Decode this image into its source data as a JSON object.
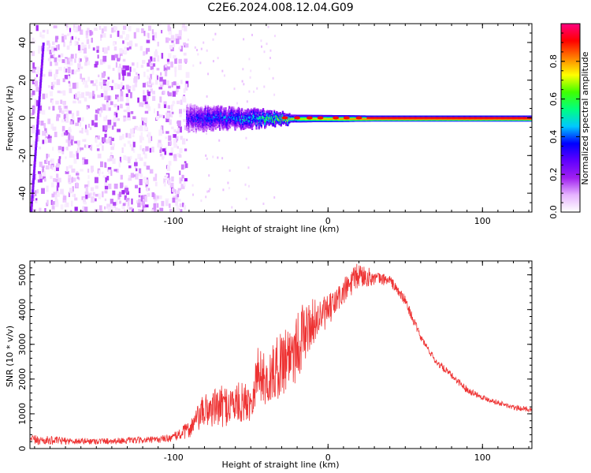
{
  "title": "C2E6.2024.008.12.04.G09",
  "chart_data": [
    {
      "type": "heatmap",
      "xlabel": "Height of straight line (km)",
      "ylabel": "Frequency (Hz)",
      "xlim": [
        -193,
        132
      ],
      "ylim": [
        -50,
        50
      ],
      "x_ticks": [
        -100,
        0,
        100
      ],
      "y_ticks": [
        -40,
        -20,
        0,
        20,
        40
      ],
      "colorbar": {
        "label": "Normalized spectral amplitude",
        "ticks": [
          0.0,
          0.2,
          0.4,
          0.6,
          0.8
        ],
        "range": [
          0,
          1
        ],
        "colors": [
          "#ffffff",
          "#e6b3ff",
          "#a020f0",
          "#6000ff",
          "#0000ff",
          "#00c8ff",
          "#00ff80",
          "#40ff00",
          "#ffff00",
          "#ff8000",
          "#ff0000",
          "#ff0080"
        ]
      },
      "features": {
        "noise_region": {
          "x_range": [
            -193,
            -92
          ],
          "freq_range": [
            -50,
            50
          ],
          "amplitude": [
            0.02,
            0.18
          ]
        },
        "steep_line": {
          "x": [
            -193,
            -185
          ],
          "freq": [
            -50,
            40
          ],
          "amplitude": 0.2
        },
        "ridge": [
          {
            "x": -92,
            "half_width": 4,
            "amplitude": 0.3
          },
          {
            "x": -80,
            "half_width": 3.5,
            "amplitude": 0.4
          },
          {
            "x": -60,
            "half_width": 3,
            "amplitude": 0.45
          },
          {
            "x": -45,
            "half_width": 2.5,
            "amplitude": 0.55
          },
          {
            "x": -30,
            "half_width": 1.5,
            "amplitude": 0.7
          },
          {
            "x": -10,
            "half_width": 1.3,
            "amplitude": 0.78
          },
          {
            "x": 10,
            "half_width": 1.2,
            "amplitude": 0.85
          },
          {
            "x": 30,
            "half_width": 1.0,
            "amplitude": 0.92
          },
          {
            "x": 132,
            "half_width": 1.0,
            "amplitude": 0.95
          }
        ]
      }
    },
    {
      "type": "line",
      "xlabel": "Height of straight line (km)",
      "ylabel": "SNR (10 * v/v)",
      "xlim": [
        -193,
        132
      ],
      "ylim": [
        0,
        5400
      ],
      "x_ticks": [
        -100,
        0,
        100
      ],
      "y_ticks": [
        0,
        1000,
        2000,
        3000,
        4000,
        5000
      ],
      "color": "#ee3333",
      "series": [
        {
          "x": [
            -193,
            -170,
            -150,
            -130,
            -110,
            -100,
            -90,
            -80,
            -70,
            -60,
            -50,
            -45,
            -40,
            -30,
            -20,
            -10,
            0,
            10,
            20,
            30,
            40,
            50,
            60,
            70,
            80,
            90,
            100,
            110,
            120,
            132
          ],
          "envelope_low": [
            100,
            120,
            120,
            140,
            160,
            200,
            300,
            600,
            600,
            700,
            800,
            1400,
            1200,
            1500,
            1900,
            3000,
            3500,
            4100,
            4600,
            4700,
            4700,
            4100,
            3100,
            2400,
            2000,
            1600,
            1400,
            1250,
            1100,
            1050
          ],
          "envelope_high": [
            400,
            320,
            300,
            320,
            350,
            450,
            800,
            1600,
            1800,
            1900,
            1900,
            3100,
            2600,
            3500,
            4100,
            4300,
            4400,
            4900,
            5400,
            5100,
            5000,
            4400,
            3300,
            2600,
            2200,
            1800,
            1550,
            1400,
            1250,
            1200
          ]
        }
      ]
    }
  ]
}
